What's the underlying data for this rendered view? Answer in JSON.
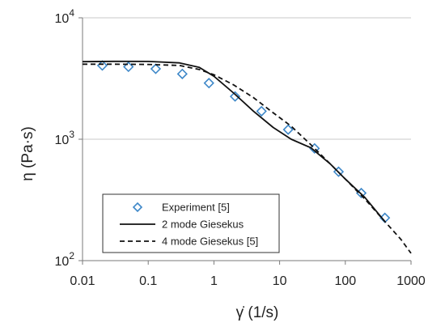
{
  "chart_data": {
    "type": "line",
    "xscale": "log",
    "yscale": "log",
    "xlim": [
      0.01,
      1000
    ],
    "ylim": [
      100,
      10000
    ],
    "xticks": [
      {
        "v": 0.01,
        "label": "0.01"
      },
      {
        "v": 0.1,
        "label": "0.1"
      },
      {
        "v": 1,
        "label": "1"
      },
      {
        "v": 10,
        "label": "10"
      },
      {
        "v": 100,
        "label": "100"
      },
      {
        "v": 1000,
        "label": "1000"
      }
    ],
    "yticks": [
      {
        "v": 100,
        "base": "10",
        "exp": "2"
      },
      {
        "v": 1000,
        "base": "10",
        "exp": "3"
      },
      {
        "v": 10000,
        "base": "10",
        "exp": "4"
      }
    ],
    "xlabel": "γ̇ (1/s)",
    "ylabel": "η (Pa·s)",
    "grid": "horizontal gridlines at major y ticks",
    "legend_position": "lower-left",
    "series": [
      {
        "name": "Experiment [5]",
        "style": "markers",
        "marker": "diamond",
        "color": "#3d87c8",
        "x": [
          0.02,
          0.05,
          0.13,
          0.33,
          0.84,
          2.1,
          5.3,
          13.5,
          34,
          79,
          175,
          400
        ],
        "y": [
          4050,
          3950,
          3800,
          3450,
          2900,
          2250,
          1700,
          1200,
          840,
          540,
          360,
          225
        ]
      },
      {
        "name": "2 mode Giesekus",
        "style": "solid",
        "color": "#111111",
        "x": [
          0.01,
          0.03,
          0.1,
          0.3,
          0.6,
          1,
          2,
          4,
          8,
          15,
          30,
          60,
          100,
          200,
          400
        ],
        "y": [
          4350,
          4380,
          4370,
          4250,
          3900,
          3300,
          2400,
          1700,
          1250,
          1000,
          850,
          620,
          470,
          330,
          210
        ]
      },
      {
        "name": "4 mode Giesekus [5]",
        "style": "dashed",
        "color": "#111111",
        "x": [
          0.01,
          0.03,
          0.1,
          0.3,
          0.6,
          1,
          2,
          4,
          8,
          15,
          30,
          60,
          100,
          200,
          400,
          700,
          1000
        ],
        "y": [
          4150,
          4150,
          4130,
          4050,
          3750,
          3400,
          2800,
          2200,
          1650,
          1280,
          900,
          620,
          470,
          320,
          210,
          150,
          115
        ]
      }
    ]
  }
}
